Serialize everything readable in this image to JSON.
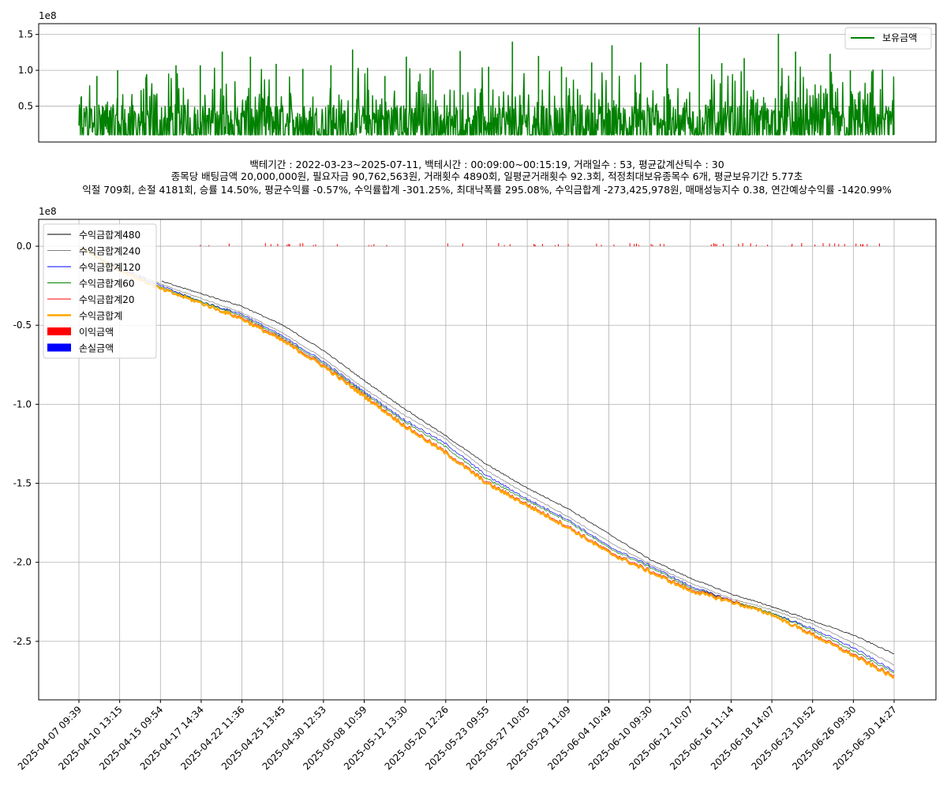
{
  "info": {
    "line1": "백테기간 : 2022-03-23~2025-07-11, 백테시간 : 00:09:00~00:15:19, 거래일수 : 53, 평균값계산틱수 : 30",
    "line2": "종목당 배팅금액 20,000,000원, 필요자금 90,762,563원, 거래횟수 4890회, 일평균거래횟수 92.3회, 적정최대보유종목수 6개, 평균보유기간 5.77초",
    "line3": "익절 709회, 손절 4181회, 승률 14.50%, 평균수익률 -0.57%, 수익률합계 -301.25%, 최대낙폭률 295.08%, 수익금합계 -273,425,978원, 매매성능지수 0.38, 연간예상수익률 -1420.99%"
  },
  "chart_data": [
    {
      "type": "line",
      "offset_text": "1e8",
      "ylim": [
        0.0,
        1.65
      ],
      "yticks": [
        0.5,
        1.0,
        1.5
      ],
      "ytick_labels": [
        "0.5",
        "1.0",
        "1.5"
      ],
      "legend_position": "upper-right",
      "series": [
        {
          "name": "보유금액",
          "color": "#008000",
          "baseline": 0.1,
          "peaks": [
            0.92,
            1.0,
            0.9,
            1.07,
            1.07,
            1.26,
            1.19,
            1.09,
            1.02,
            1.07,
            1.29,
            0.92,
            1.19,
            1.0,
            1.27,
            1.05,
            1.4,
            1.2,
            1.05,
            1.11,
            1.35,
            1.11,
            1.09,
            1.6,
            1.1,
            1.17,
            1.51,
            1.26,
            1.23,
            1.0,
            1.01
          ]
        }
      ]
    },
    {
      "type": "line",
      "offset_text": "1e8",
      "ylim": [
        -2.87,
        0.17
      ],
      "yticks": [
        0.0,
        -0.5,
        -1.0,
        -1.5,
        -2.0,
        -2.5
      ],
      "ytick_labels": [
        "0.0",
        "-0.5",
        "-1.0",
        "-1.5",
        "-2.0",
        "-2.5"
      ],
      "categories": [
        "2025-04-07 09:39",
        "2025-04-10 13:15",
        "2025-04-15 09:54",
        "2025-04-17 14:34",
        "2025-04-22 11:36",
        "2025-04-25 13:45",
        "2025-04-30 12:53",
        "2025-05-08 10:59",
        "2025-05-12 13:30",
        "2025-05-20 12:26",
        "2025-05-23 09:55",
        "2025-05-27 10:05",
        "2025-05-29 11:09",
        "2025-06-04 10:49",
        "2025-06-10 09:30",
        "2025-06-12 10:07",
        "2025-06-16 11:14",
        "2025-06-18 14:07",
        "2025-06-23 10:52",
        "2025-06-26 09:30",
        "2025-06-30 14:27"
      ],
      "legend_position": "upper-left",
      "series": [
        {
          "name": "수익금합계480",
          "color": "#000000",
          "lag": 480,
          "values": [
            -0.0,
            -0.13,
            -0.22,
            -0.3,
            -0.38,
            -0.5,
            -0.66,
            -0.85,
            -1.03,
            -1.2,
            -1.38,
            -1.53,
            -1.66,
            -1.82,
            -1.98,
            -2.1,
            -2.2,
            -2.28,
            -2.37,
            -2.46,
            -2.58
          ]
        },
        {
          "name": "수익금합계240",
          "color": "#808080",
          "lag": 240,
          "values": [
            -0.0,
            -0.13,
            -0.24,
            -0.33,
            -0.42,
            -0.55,
            -0.71,
            -0.9,
            -1.07,
            -1.22,
            -1.42,
            -1.57,
            -1.71,
            -1.87,
            -2.01,
            -2.13,
            -2.23,
            -2.3,
            -2.39,
            -2.51,
            -2.65
          ]
        },
        {
          "name": "수익금합계120",
          "color": "#0000ff",
          "lag": 120,
          "values": [
            -0.0,
            -0.14,
            -0.25,
            -0.35,
            -0.43,
            -0.57,
            -0.73,
            -0.92,
            -1.1,
            -1.25,
            -1.45,
            -1.6,
            -1.73,
            -1.9,
            -2.02,
            -2.15,
            -2.24,
            -2.32,
            -2.42,
            -2.54,
            -2.69
          ]
        },
        {
          "name": "수익금합계60",
          "color": "#008000",
          "lag": 60,
          "values": [
            -0.0,
            -0.15,
            -0.26,
            -0.35,
            -0.44,
            -0.58,
            -0.74,
            -0.93,
            -1.11,
            -1.27,
            -1.47,
            -1.61,
            -1.74,
            -1.91,
            -2.03,
            -2.16,
            -2.24,
            -2.32,
            -2.43,
            -2.56,
            -2.7
          ]
        },
        {
          "name": "수익금합계20",
          "color": "#ff0000",
          "lag": 20,
          "values": [
            -0.0,
            -0.15,
            -0.27,
            -0.36,
            -0.45,
            -0.59,
            -0.75,
            -0.94,
            -1.13,
            -1.3,
            -1.49,
            -1.63,
            -1.77,
            -1.93,
            -2.05,
            -2.17,
            -2.24,
            -2.33,
            -2.45,
            -2.58,
            -2.72
          ]
        },
        {
          "name": "수익금합계",
          "color": "#ffa500",
          "lag": 0,
          "values": [
            -0.0,
            -0.15,
            -0.27,
            -0.36,
            -0.46,
            -0.6,
            -0.76,
            -0.95,
            -1.14,
            -1.31,
            -1.5,
            -1.64,
            -1.78,
            -1.94,
            -2.06,
            -2.18,
            -2.25,
            -2.33,
            -2.46,
            -2.59,
            -2.73
          ]
        }
      ],
      "bars": [
        {
          "name": "이익금액",
          "color": "#ff0000"
        },
        {
          "name": "손실금액",
          "color": "#0000ff"
        }
      ]
    }
  ]
}
